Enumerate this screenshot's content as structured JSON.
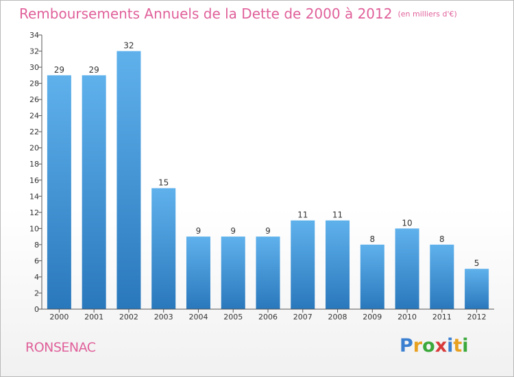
{
  "header": {
    "title": "Remboursements Annuels de la Dette de 2000 à 2012",
    "subtitle": "(en milliers d'€)"
  },
  "footer": {
    "commune": "RONSENAC",
    "logo_text": "Proxiti",
    "logo_letters": [
      {
        "char": "P",
        "color": "#3a7fd0"
      },
      {
        "char": "r",
        "color": "#e8a020"
      },
      {
        "char": "o",
        "color": "#3aa83a"
      },
      {
        "char": "x",
        "color": "#d83a3a"
      },
      {
        "char": "i",
        "color": "#3a7fd0"
      },
      {
        "char": "t",
        "color": "#e8a020"
      },
      {
        "char": "i",
        "color": "#3aa83a"
      }
    ]
  },
  "colors": {
    "title": "#e0609a",
    "bar_top": "#5fb1ec",
    "bar_bottom": "#2a78bc",
    "axis": "#555555"
  },
  "chart_data": {
    "type": "bar",
    "categories": [
      "2000",
      "2001",
      "2002",
      "2003",
      "2004",
      "2005",
      "2006",
      "2007",
      "2008",
      "2009",
      "2010",
      "2011",
      "2012"
    ],
    "values": [
      29,
      29,
      32,
      15,
      9,
      9,
      9,
      11,
      11,
      8,
      10,
      8,
      5
    ],
    "ylim": [
      0,
      34
    ],
    "yticks": [
      0,
      2,
      4,
      6,
      8,
      10,
      12,
      14,
      16,
      18,
      20,
      22,
      24,
      26,
      28,
      30,
      32,
      34
    ],
    "grid": false,
    "legend": "none"
  }
}
